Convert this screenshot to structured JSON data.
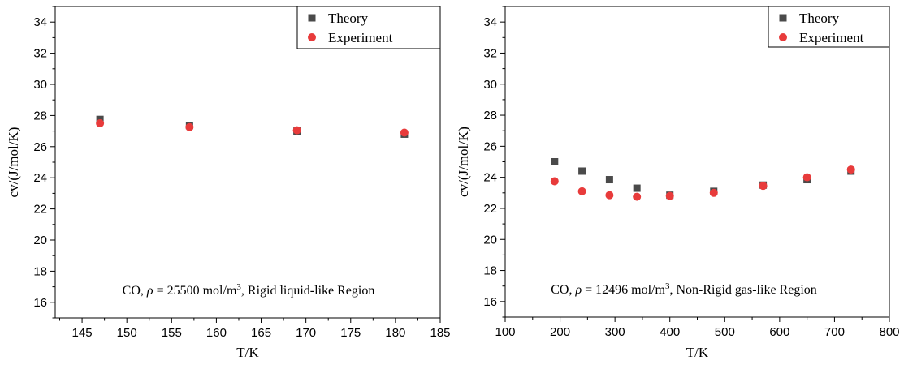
{
  "chart_data": [
    {
      "type": "scatter",
      "xlabel": "T/K",
      "ylabel": "cv/(J/mol/K)",
      "xlim": [
        142,
        185
      ],
      "ylim": [
        15,
        35
      ],
      "xticks": [
        145,
        150,
        155,
        160,
        165,
        170,
        175,
        180,
        185
      ],
      "yticks": [
        16,
        18,
        20,
        22,
        24,
        26,
        28,
        30,
        32,
        34
      ],
      "legend_position": "top-right",
      "annotation": {
        "prefix": "CO, ",
        "rho_symbol": "ρ",
        "mid": " = 25500 mol/m",
        "exp": "3",
        "suffix": ", Rigid liquid-like Region"
      },
      "series": [
        {
          "name": "Theory",
          "marker": "square",
          "color": "#4a4a4a",
          "x": [
            147,
            157,
            169,
            181
          ],
          "y": [
            27.75,
            27.35,
            27.0,
            26.8
          ]
        },
        {
          "name": "Experiment",
          "marker": "circle",
          "color": "#e83b3b",
          "x": [
            147,
            157,
            169,
            181
          ],
          "y": [
            27.5,
            27.25,
            27.05,
            26.9
          ]
        }
      ]
    },
    {
      "type": "scatter",
      "xlabel": "T/K",
      "ylabel": "cv/(J/mol/K)",
      "xlim": [
        100,
        800
      ],
      "ylim": [
        15,
        35
      ],
      "xticks": [
        100,
        200,
        300,
        400,
        500,
        600,
        700,
        800
      ],
      "yticks": [
        16,
        18,
        20,
        22,
        24,
        26,
        28,
        30,
        32,
        34
      ],
      "legend_position": "top-right",
      "annotation": {
        "prefix": "CO, ",
        "rho_symbol": "ρ",
        "mid": " = 12496 mol/m",
        "exp": "3",
        "suffix": ", Non-Rigid gas-like Region"
      },
      "series": [
        {
          "name": "Theory",
          "marker": "square",
          "color": "#4a4a4a",
          "x": [
            190,
            240,
            290,
            340,
            400,
            480,
            570,
            650,
            730
          ],
          "y": [
            25.0,
            24.4,
            23.85,
            23.3,
            22.85,
            23.1,
            23.5,
            23.85,
            24.4
          ]
        },
        {
          "name": "Experiment",
          "marker": "circle",
          "color": "#e83b3b",
          "x": [
            190,
            240,
            290,
            340,
            400,
            480,
            570,
            650,
            730
          ],
          "y": [
            23.75,
            23.1,
            22.85,
            22.75,
            22.8,
            23.0,
            23.45,
            24.0,
            24.5
          ]
        }
      ]
    }
  ]
}
